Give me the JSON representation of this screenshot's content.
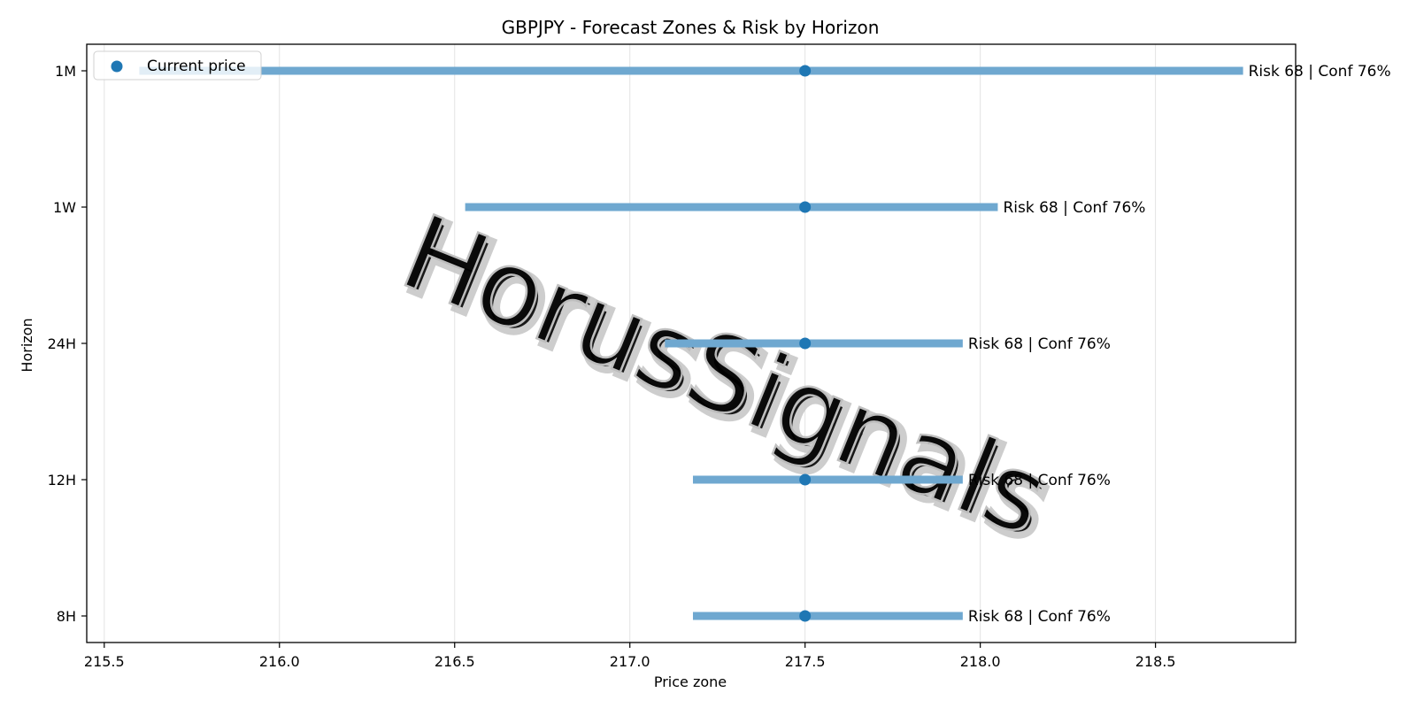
{
  "chart_data": {
    "type": "range",
    "title": "GBPJPY - Forecast Zones & Risk by Horizon",
    "xlabel": "Price zone",
    "ylabel": "Horizon",
    "xlim": [
      215.45,
      218.9
    ],
    "x_ticks": [
      215.5,
      216.0,
      216.5,
      217.0,
      217.5,
      218.0,
      218.5
    ],
    "x_tick_labels": [
      "215.5",
      "216.0",
      "216.5",
      "217.0",
      "217.5",
      "218.0",
      "218.5"
    ],
    "grid": "x",
    "legend": {
      "position": "top-left",
      "label": "Current price"
    },
    "watermark": "HorusSignals",
    "colors": {
      "bar": "#6fa8d0",
      "point": "#1f77b4"
    },
    "rows": [
      {
        "horizon": "1M",
        "low": 215.6,
        "high": 218.75,
        "current": 217.5,
        "label": "Risk 68 | Conf 76%"
      },
      {
        "horizon": "1W",
        "low": 216.53,
        "high": 218.05,
        "current": 217.5,
        "label": "Risk 68 | Conf 76%"
      },
      {
        "horizon": "24H",
        "low": 217.1,
        "high": 217.95,
        "current": 217.5,
        "label": "Risk 68 | Conf 76%"
      },
      {
        "horizon": "12H",
        "low": 217.18,
        "high": 217.95,
        "current": 217.5,
        "label": "Risk 68 | Conf 76%"
      },
      {
        "horizon": "8H",
        "low": 217.18,
        "high": 217.95,
        "current": 217.5,
        "label": "Risk 68 | Conf 76%"
      }
    ]
  }
}
